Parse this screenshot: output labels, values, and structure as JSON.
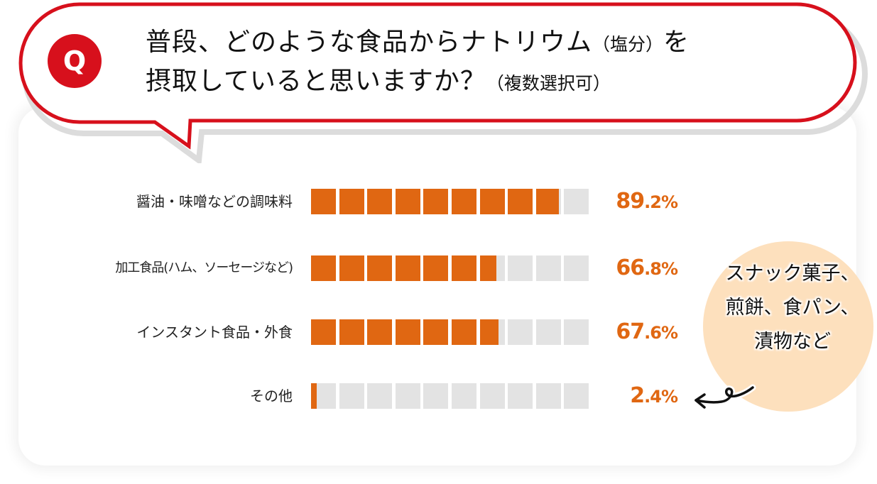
{
  "question": {
    "badge": "Q",
    "line1_main": "普段、どのような食品からナトリウム",
    "line1_paren": "（塩分）",
    "line1_end": "を",
    "line2_main": "摂取していると思いますか？",
    "line2_paren": "（複数選択可）"
  },
  "colors": {
    "accent_red": "#d7101c",
    "bar_fill": "#e06712",
    "bar_empty": "#e3e3e3",
    "note_bg": "#fde0bd"
  },
  "note": {
    "line1": "スナック菓子、",
    "line2": "煎餅、食パン、",
    "line3": "漬物など",
    "arrow_icon": "curly-arrow-left"
  },
  "rows": [
    {
      "label": "醤油・味噌などの調味料",
      "value": 89.2,
      "int": "89",
      "dec": ".2%"
    },
    {
      "label": "加工食品(ハム、ソーセージなど)",
      "value": 66.8,
      "int": "66",
      "dec": ".8%"
    },
    {
      "label": "インスタント食品・外食",
      "value": 67.6,
      "int": "67",
      "dec": ".6%"
    },
    {
      "label": "その他",
      "value": 2.4,
      "int": "2",
      "dec": ".4%"
    }
  ],
  "chart_data": {
    "type": "bar",
    "orientation": "horizontal",
    "title": "普段、どのような食品からナトリウム（塩分）を摂取していると思いますか？（複数選択可）",
    "categories": [
      "醤油・味噌などの調味料",
      "加工食品(ハム、ソーセージなど)",
      "インスタント食品・外食",
      "その他"
    ],
    "values": [
      89.2,
      66.8,
      67.6,
      2.4
    ],
    "unit": "%",
    "xlim": [
      0,
      100
    ],
    "segments": 10,
    "annotations": [
      "その他: スナック菓子、煎餅、食パン、漬物など"
    ],
    "grid": false,
    "legend": "none"
  }
}
